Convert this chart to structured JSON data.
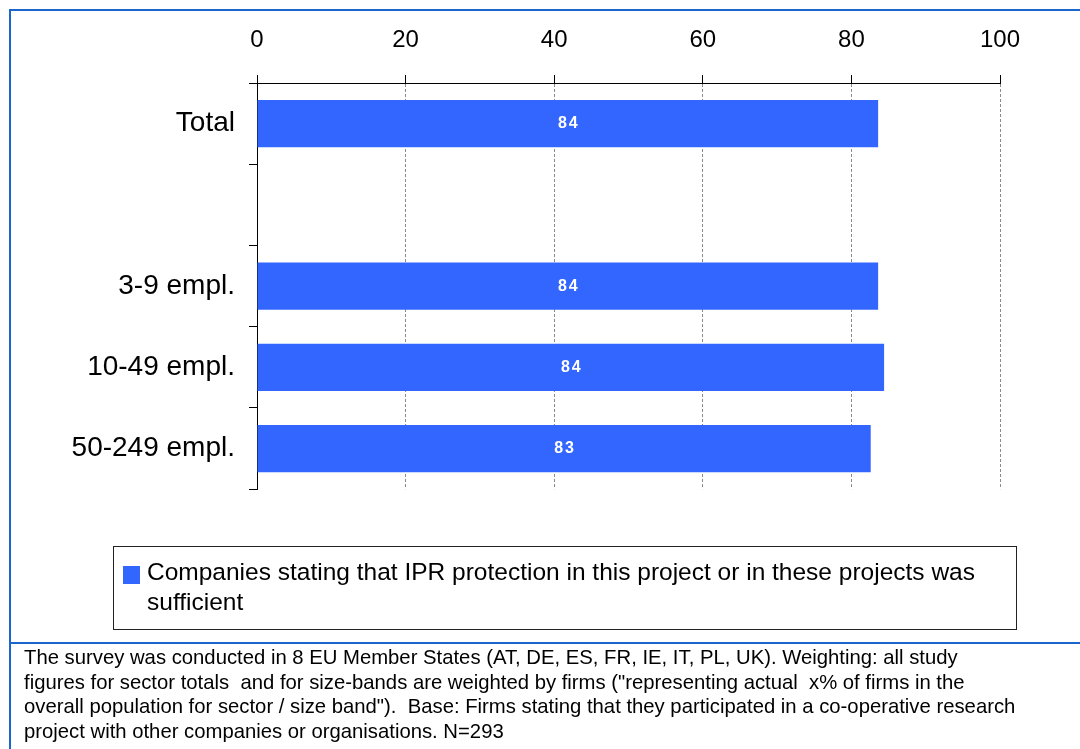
{
  "chart_data": {
    "type": "bar",
    "orientation": "horizontal",
    "categories": [
      "Total",
      null,
      "3-9 empl.",
      "10-49 empl.",
      "50-249 empl."
    ],
    "series": [
      {
        "name": "Companies stating that IPR protection in this project or in these projects was sufficient",
        "color": "#3366ff",
        "values": [
          83.6,
          null,
          83.6,
          84.4,
          82.6
        ],
        "value_labels": [
          "84",
          null,
          "84",
          "84",
          "83"
        ]
      }
    ],
    "xlim": [
      0,
      100
    ],
    "xticks": [
      0,
      20,
      40,
      60,
      80,
      100
    ],
    "grid": "x",
    "legend": "bottom",
    "annotations": [
      "The survey was conducted in 8 EU Member States (AT, DE, ES, FR, IE, IT, PL, UK). Weighting: all study figures for sector totals  and for size-bands are weighted by firms (\"representing actual  x% of firms in the overall population for sector / size band\").  Base: Firms stating that they participated in a co-operative research project with other companies or organisations. N=293"
    ]
  }
}
